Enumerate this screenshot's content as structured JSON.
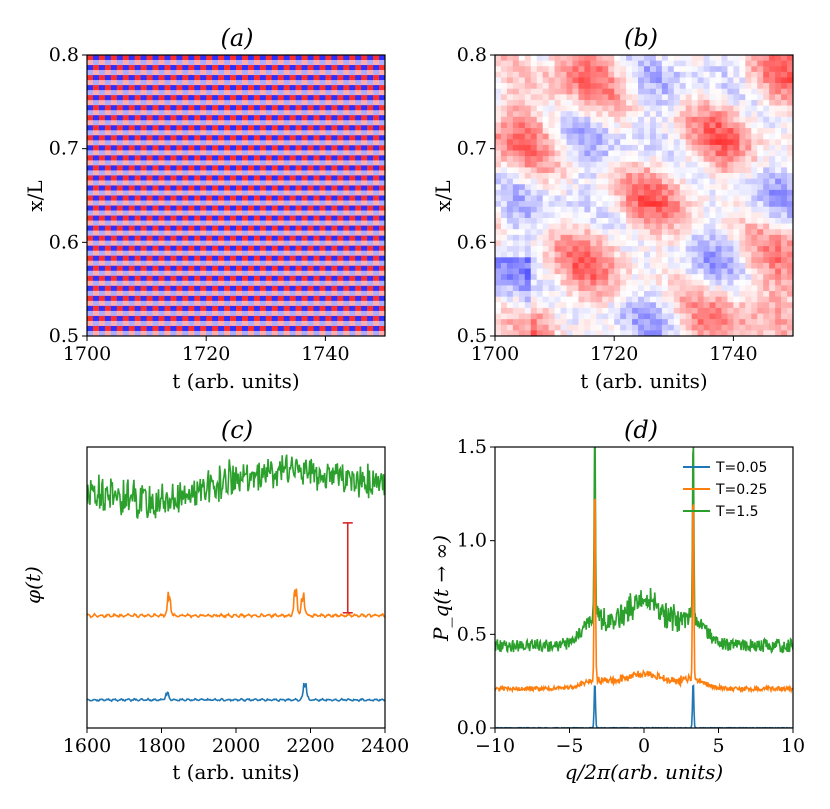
{
  "chart_data": [
    {
      "panel": "a",
      "type": "heatmap",
      "title": "(a)",
      "xlabel": "t (arb. units)",
      "ylabel": "x/L",
      "xlim": [
        1700,
        1750
      ],
      "ylim": [
        0.5,
        0.8
      ],
      "xticks": [
        "1700",
        "1720",
        "1740"
      ],
      "yticks": [
        "0.5",
        "0.6",
        "0.7",
        "0.8"
      ],
      "colormap": {
        "low": "#0000ff",
        "mid": "#ffffff",
        "high": "#ff0000"
      },
      "pattern": "checkerboard",
      "pattern_columns": 25,
      "pattern_rows": 14
    },
    {
      "panel": "b",
      "type": "heatmap",
      "title": "(b)",
      "xlabel": "t (arb. units)",
      "ylabel": "x/L",
      "xlim": [
        1700,
        1750
      ],
      "ylim": [
        0.5,
        0.8
      ],
      "xticks": [
        "1700",
        "1720",
        "1740"
      ],
      "yticks": [
        "0.5",
        "0.6",
        "0.7",
        "0.8"
      ],
      "colormap": {
        "low": "#0000ff",
        "mid": "#ffffff",
        "high": "#ff0000"
      },
      "pattern": "noisy-diagonal",
      "grid_cells": 50
    },
    {
      "panel": "c",
      "type": "line",
      "title": "(c)",
      "xlabel": "t (arb. units)",
      "ylabel": "φ(t)",
      "xlim": [
        1600,
        2400
      ],
      "ylim": [
        0,
        10
      ],
      "xticks": [
        "1600",
        "1800",
        "2000",
        "2200",
        "2400"
      ],
      "series": [
        {
          "color": "#1f77b4",
          "baseline": 1.0,
          "noise": 0.04,
          "spikes": [
            [
              1815,
              0.25
            ],
            [
              2185,
              0.6
            ]
          ]
        },
        {
          "color": "#ff7f0e",
          "baseline": 4.0,
          "noise": 0.06,
          "spikes": [
            [
              1820,
              0.7
            ],
            [
              2160,
              0.9
            ],
            [
              2180,
              0.7
            ]
          ]
        },
        {
          "color": "#2ca02c",
          "baseline": 8.6,
          "noise": 0.5,
          "trend": [
            [
              1600,
              8.4
            ],
            [
              1800,
              8.0
            ],
            [
              2000,
              8.9
            ],
            [
              2150,
              9.2
            ],
            [
              2400,
              8.7
            ]
          ]
        }
      ],
      "errorbar": {
        "color": "#d62728",
        "x": 2300,
        "y_low": 4.1,
        "y_high": 7.3
      }
    },
    {
      "panel": "d",
      "type": "line",
      "title": "(d)",
      "xlabel": "q/2π(arb. units)",
      "ylabel": "P_q(t → ∞)",
      "xlim": [
        -10,
        10
      ],
      "ylim": [
        0,
        1.5
      ],
      "xticks": [
        "−10",
        "−5",
        "0",
        "5",
        "10"
      ],
      "yticks": [
        "0.0",
        "0.5",
        "1.0",
        "1.5"
      ],
      "legend": {
        "position": "top-right",
        "entries": [
          "T=0.05",
          "T=0.25",
          "T=1.5"
        ]
      },
      "series": [
        {
          "name": "T=0.05",
          "color": "#1f77b4",
          "baseline": 0.0,
          "peaks": [
            [
              -3.3,
              0.25
            ],
            [
              3.3,
              0.25
            ]
          ]
        },
        {
          "name": "T=0.25",
          "color": "#ff7f0e",
          "baseline": 0.21,
          "center_bump": 0.08,
          "peaks": [
            [
              -3.3,
              1.28
            ],
            [
              3.3,
              1.25
            ]
          ]
        },
        {
          "name": "T=1.5",
          "color": "#2ca02c",
          "baseline": 0.44,
          "center_bump": 0.25,
          "peaks": [
            [
              -3.3,
              1.5
            ],
            [
              3.3,
              1.5
            ]
          ]
        }
      ]
    }
  ]
}
